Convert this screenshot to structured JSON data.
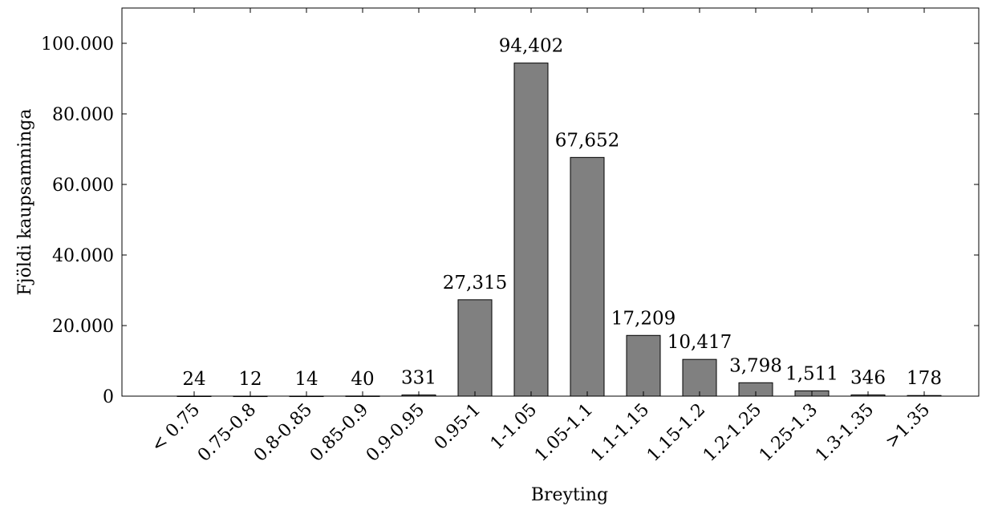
{
  "chart_data": {
    "type": "bar",
    "xlabel": "Breyting",
    "ylabel": "Fjöldi kaupsamninga",
    "ylim": [
      0,
      110000
    ],
    "yticks": [
      0,
      20000,
      40000,
      60000,
      80000,
      100000
    ],
    "ytick_labels": [
      "0",
      "20.000",
      "40.000",
      "60.000",
      "80.000",
      "100.000"
    ],
    "categories": [
      "< 0.75",
      "0.75-0.8",
      "0.8-0.85",
      "0.85-0.9",
      "0.9-0.95",
      "0.95-1",
      "1-1.05",
      "1.05-1.1",
      "1.1-1.15",
      "1.15-1.2",
      "1.2-1.25",
      "1.25-1.3",
      "1.3-1.35",
      ">1.35"
    ],
    "values": [
      24,
      12,
      14,
      40,
      331,
      27315,
      94402,
      67652,
      17209,
      10417,
      3798,
      1511,
      346,
      178
    ],
    "value_labels": [
      "24",
      "12",
      "14",
      "40",
      "331",
      "27,315",
      "94,402",
      "67,652",
      "17,209",
      "10,417",
      "3,798",
      "1,511",
      "346",
      "178"
    ],
    "bar_color": "#808080",
    "grid": false
  }
}
